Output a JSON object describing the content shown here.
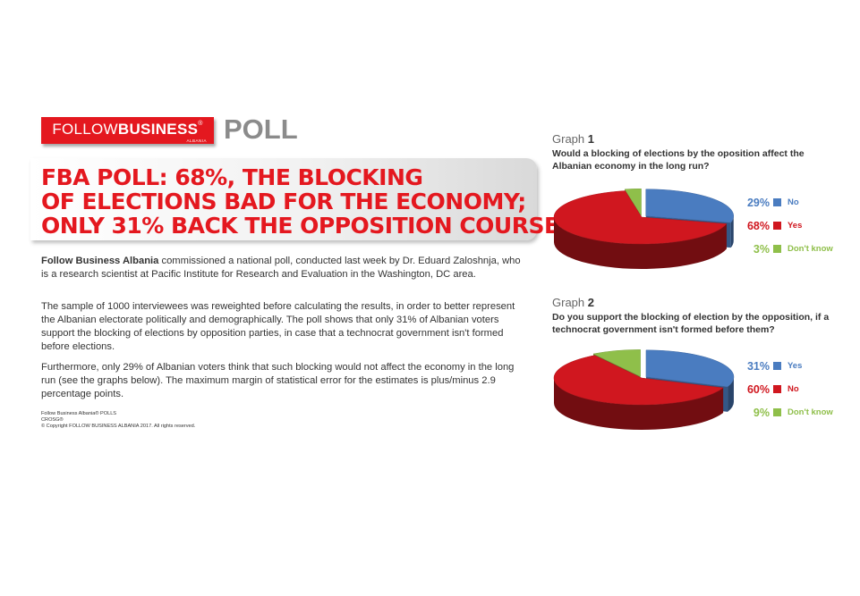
{
  "brand": {
    "name_light": "FOLLOW",
    "name_bold": "BUSINESS",
    "registered": "®",
    "sub": "ALBANIA"
  },
  "poll_word": "POLL",
  "headline": [
    "FBA POLL: 68%, THE BLOCKING",
    "OF ELECTIONS BAD FOR THE ECONOMY;",
    "ONLY 31% BACK THE OPPOSITION COURSE"
  ],
  "body": {
    "p1_bold": "Follow Business Albania",
    "p1_rest": " commissioned a national poll, conducted last week by Dr. Eduard Zaloshnja, who is a research scientist at Pacific Institute for Research and Evaluation in the Washington, DC area.",
    "p2": "The sample of 1000 interviewees was reweighted before calculating the results, in order to better represent the Albanian electorate politically and demographically. The poll shows that only 31% of Albanian voters support the blocking of elections by opposition parties, in case that a technocrat government isn't formed before elections.",
    "p3": "Furthermore, only 29% of Albanian voters think that such blocking would not affect the economy in the long run (see the graphs below).  The maximum margin of statistical error for the estimates is plus/minus 2.9 percentage points."
  },
  "footer": {
    "line1": "Follow Business Albania® POLLS",
    "line2": "CROSG®",
    "line3": "© Copyright FOLLOW BUSINESS ALBANIA 2017. All rights reserved."
  },
  "colors": {
    "red": "#e4181f",
    "blue": "#4a7cc0",
    "green": "#8fbf4a"
  },
  "chart_data": [
    {
      "type": "pie",
      "label_word": "Graph",
      "label_num": "1",
      "title": "Would a blocking of elections by the oposition affect the Albanian economy in the long run?",
      "categories": [
        "No",
        "Yes",
        "Don't know"
      ],
      "values": [
        29,
        68,
        3
      ],
      "value_labels": [
        "29%",
        "68%",
        "3%"
      ],
      "colors": [
        "#4a7cc0",
        "#d0171f",
        "#8fbf4a"
      ]
    },
    {
      "type": "pie",
      "label_word": "Graph",
      "label_num": "2",
      "title": "Do you support the blocking of election by the opposition, if a technocrat government isn't formed before them?",
      "categories": [
        "Yes",
        "No",
        "Don't know"
      ],
      "values": [
        31,
        60,
        9
      ],
      "value_labels": [
        "31%",
        "60%",
        "9%"
      ],
      "colors": [
        "#4a7cc0",
        "#d0171f",
        "#8fbf4a"
      ]
    }
  ]
}
